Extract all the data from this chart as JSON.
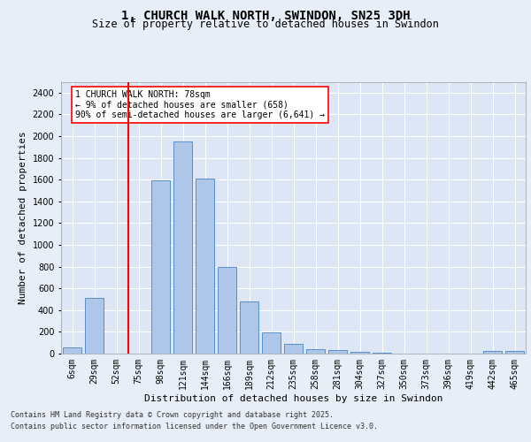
{
  "title": "1, CHURCH WALK NORTH, SWINDON, SN25 3DH",
  "subtitle": "Size of property relative to detached houses in Swindon",
  "xlabel": "Distribution of detached houses by size in Swindon",
  "ylabel": "Number of detached properties",
  "categories": [
    "6sqm",
    "29sqm",
    "52sqm",
    "75sqm",
    "98sqm",
    "121sqm",
    "144sqm",
    "166sqm",
    "189sqm",
    "212sqm",
    "235sqm",
    "258sqm",
    "281sqm",
    "304sqm",
    "327sqm",
    "350sqm",
    "373sqm",
    "396sqm",
    "419sqm",
    "442sqm",
    "465sqm"
  ],
  "values": [
    55,
    510,
    0,
    0,
    1590,
    1950,
    1610,
    800,
    480,
    195,
    90,
    40,
    30,
    20,
    10,
    0,
    0,
    0,
    0,
    25,
    25
  ],
  "bar_color": "#aec6e8",
  "bar_edge_color": "#5b8fc9",
  "vline_color": "red",
  "vline_pos": 2.55,
  "annotation_text": "1 CHURCH WALK NORTH: 78sqm\n← 9% of detached houses are smaller (658)\n90% of semi-detached houses are larger (6,641) →",
  "annotation_box_color": "white",
  "annotation_box_edge_color": "red",
  "ylim": [
    0,
    2500
  ],
  "yticks": [
    0,
    200,
    400,
    600,
    800,
    1000,
    1200,
    1400,
    1600,
    1800,
    2000,
    2200,
    2400
  ],
  "bg_color": "#e8eef7",
  "plot_bg_color": "#dce6f5",
  "grid_color": "white",
  "title_fontsize": 10,
  "subtitle_fontsize": 8.5,
  "ylabel_fontsize": 8,
  "xlabel_fontsize": 8,
  "tick_fontsize": 7,
  "footer_line1": "Contains HM Land Registry data © Crown copyright and database right 2025.",
  "footer_line2": "Contains public sector information licensed under the Open Government Licence v3.0.",
  "footer_fontsize": 6
}
